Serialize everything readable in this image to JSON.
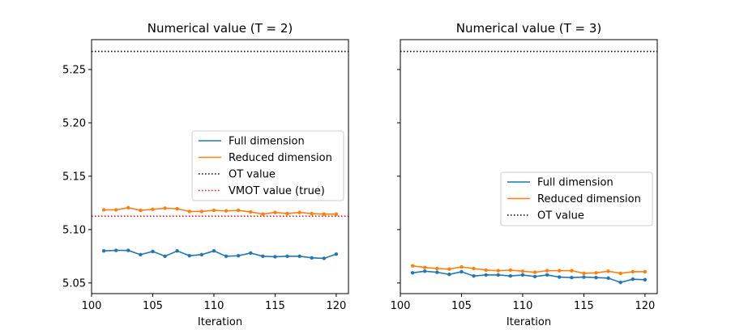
{
  "chart_data": [
    {
      "type": "line",
      "title": "Numerical value (T = 2)",
      "xlabel": "Iteration",
      "ylabel": "",
      "xlim": [
        100,
        121
      ],
      "ylim": [
        5.04,
        5.278
      ],
      "xticks": [
        100,
        105,
        110,
        115,
        120
      ],
      "yticks": [
        5.05,
        5.1,
        5.15,
        5.2,
        5.25
      ],
      "ytick_labels": [
        "5.05",
        "5.10",
        "5.15",
        "5.20",
        "5.25"
      ],
      "legend_position": "center-right",
      "x": [
        101,
        102,
        103,
        104,
        105,
        106,
        107,
        108,
        109,
        110,
        111,
        112,
        113,
        114,
        115,
        116,
        117,
        118,
        119,
        120
      ],
      "series": [
        {
          "name": "Full dimension",
          "color": "#1f77b4",
          "style": "solid-marker",
          "values": [
            5.08,
            5.0805,
            5.0805,
            5.0765,
            5.0795,
            5.075,
            5.08,
            5.0755,
            5.0765,
            5.08,
            5.075,
            5.0755,
            5.078,
            5.075,
            5.0745,
            5.075,
            5.075,
            5.0735,
            5.073,
            5.077
          ]
        },
        {
          "name": "Reduced dimension",
          "color": "#ff7f0e",
          "style": "solid-marker",
          "values": [
            5.1185,
            5.1185,
            5.1205,
            5.118,
            5.119,
            5.12,
            5.1195,
            5.117,
            5.117,
            5.118,
            5.1175,
            5.118,
            5.1165,
            5.1145,
            5.116,
            5.115,
            5.116,
            5.115,
            5.1145,
            5.1145
          ]
        },
        {
          "name": "OT value",
          "color": "#000000",
          "style": "dotted-hline",
          "value": 5.267
        },
        {
          "name": "VMOT value (true)",
          "color": "#ff0000",
          "style": "dotted-hline",
          "value": 5.1125
        }
      ]
    },
    {
      "type": "line",
      "title": "Numerical value (T = 3)",
      "xlabel": "Iteration",
      "ylabel": "",
      "xlim": [
        100,
        121
      ],
      "ylim": [
        5.04,
        5.278
      ],
      "xticks": [
        100,
        105,
        110,
        115,
        120
      ],
      "yticks": [
        5.05,
        5.1,
        5.15,
        5.2,
        5.25
      ],
      "legend_position": "center-right",
      "x": [
        101,
        102,
        103,
        104,
        105,
        106,
        107,
        108,
        109,
        110,
        111,
        112,
        113,
        114,
        115,
        116,
        117,
        118,
        119,
        120
      ],
      "series": [
        {
          "name": "Full dimension",
          "color": "#1f77b4",
          "style": "solid-marker",
          "values": [
            5.0595,
            5.061,
            5.06,
            5.058,
            5.0605,
            5.0565,
            5.0575,
            5.0575,
            5.0565,
            5.0575,
            5.056,
            5.0575,
            5.0555,
            5.055,
            5.0555,
            5.055,
            5.0545,
            5.0505,
            5.0535,
            5.053
          ]
        },
        {
          "name": "Reduced dimension",
          "color": "#ff7f0e",
          "style": "solid-marker",
          "values": [
            5.066,
            5.0645,
            5.0635,
            5.063,
            5.065,
            5.0635,
            5.062,
            5.0615,
            5.062,
            5.061,
            5.06,
            5.0615,
            5.0615,
            5.0615,
            5.059,
            5.0595,
            5.061,
            5.059,
            5.0605,
            5.0605
          ]
        },
        {
          "name": "OT value",
          "color": "#000000",
          "style": "dotted-hline",
          "value": 5.267
        }
      ]
    }
  ]
}
